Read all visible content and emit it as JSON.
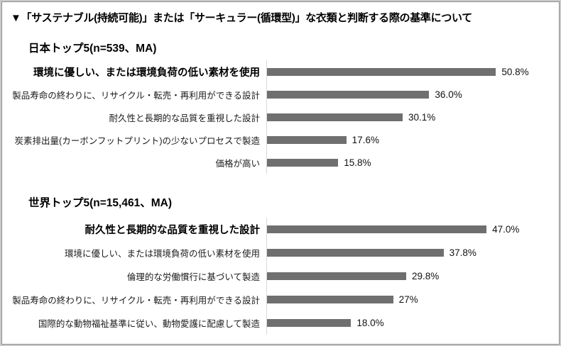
{
  "title": "▼「サステナブル(持続可能)」または「サーキュラー(循環型)」な衣類と判断する際の基準について",
  "colors": {
    "bar": "#6f6f6f",
    "axis_line": "#d9d9d9",
    "frame_outer": "#c9c9c9",
    "frame_inner": "#8f8f8f"
  },
  "chart_data": [
    {
      "type": "bar",
      "orientation": "horizontal",
      "title": "日本トップ5(n=539、MA)",
      "categories": [
        "環境に優しい、または環境負荷の低い素材を使用",
        "製品寿命の終わりに、リサイクル・転売・再利用ができる設計",
        "耐久性と長期的な品質を重視した設計",
        "炭素排出量(カーボンフットプリント)の少ないプロセスで製造",
        "価格が高い"
      ],
      "values": [
        50.8,
        36.0,
        30.1,
        17.6,
        15.8
      ],
      "value_labels": [
        "50.8%",
        "36.0%",
        "30.1%",
        "17.6%",
        "15.8%"
      ],
      "xlim": [
        0,
        55
      ],
      "grid": false,
      "legend": false,
      "highlight_first_category": true
    },
    {
      "type": "bar",
      "orientation": "horizontal",
      "title": "世界トップ5(n=15,461、MA)",
      "categories": [
        "耐久性と長期的な品質を重視した設計",
        "環境に優しい、または環境負荷の低い素材を使用",
        "倫理的な労働慣行に基づいて製造",
        "製品寿命の終わりに、リサイクル・転売・再利用ができる設計",
        "国際的な動物福祉基準に従い、動物愛護に配慮して製造"
      ],
      "values": [
        47.0,
        37.8,
        29.8,
        27,
        18.0
      ],
      "value_labels": [
        "47.0%",
        "37.8%",
        "29.8%",
        "27%",
        "18.0%"
      ],
      "xlim": [
        0,
        52
      ],
      "grid": false,
      "legend": false,
      "highlight_first_category": true
    }
  ]
}
